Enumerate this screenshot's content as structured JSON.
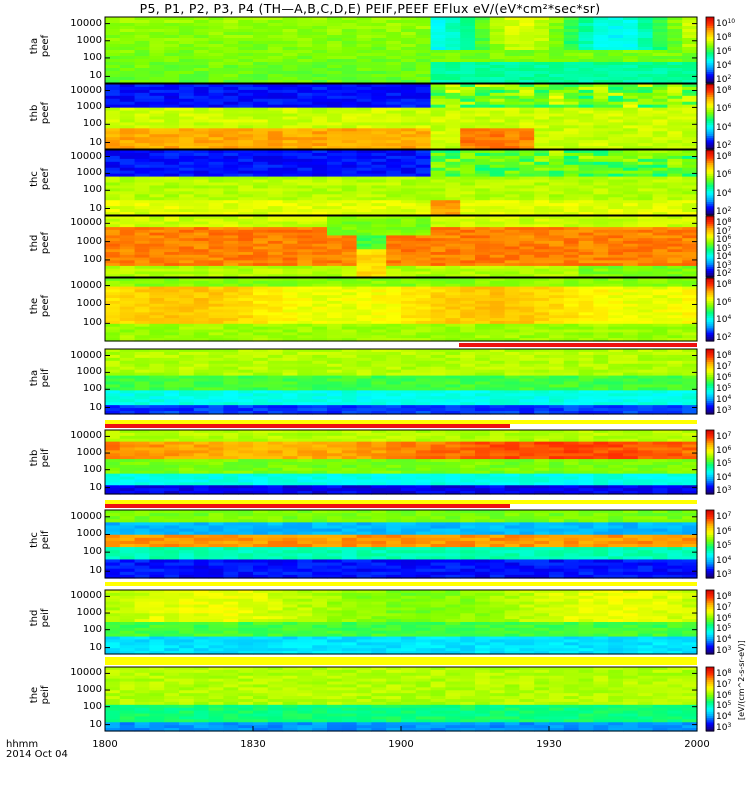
{
  "title": "P5, P1, P2, P3, P4 (TH—A,B,C,D,E) PEIF,PEEF EFlux eV/(eV*cm²*sec*sr)",
  "x_axis": {
    "label_line1": "hhmm",
    "label_line2": "2014 Oct 04",
    "ticks": [
      "1800",
      "1830",
      "1900",
      "1930",
      "2000"
    ]
  },
  "colorbar_label": "[eV/(cm^2-s-sr-eV)]",
  "chart_data": [
    {
      "type": "heatmap",
      "probe": "tha",
      "product": "peef",
      "ylabel_line1": "tha",
      "ylabel_line2": "peef",
      "y_ticks": [
        "10000",
        "1000",
        "100",
        "10"
      ],
      "colorbar_ticks": [
        "10",
        "8",
        "6",
        "4",
        "2"
      ],
      "colorbar_top_exp": "10",
      "x_range": [
        "1800",
        "2000"
      ]
    },
    {
      "type": "heatmap",
      "probe": "thb",
      "product": "peef",
      "ylabel_line1": "thb",
      "ylabel_line2": "peef",
      "y_ticks": [
        "10000",
        "1000",
        "100",
        "10"
      ],
      "colorbar_ticks": [
        "8",
        "6",
        "4",
        "2"
      ],
      "x_range": [
        "1800",
        "2000"
      ]
    },
    {
      "type": "heatmap",
      "probe": "thc",
      "product": "peef",
      "ylabel_line1": "thc",
      "ylabel_line2": "peef",
      "y_ticks": [
        "10000",
        "1000",
        "100",
        "10"
      ],
      "colorbar_ticks": [
        "8",
        "6",
        "4",
        "2"
      ],
      "x_range": [
        "1800",
        "2000"
      ]
    },
    {
      "type": "heatmap",
      "probe": "thd",
      "product": "peef",
      "ylabel_line1": "thd",
      "ylabel_line2": "peef",
      "y_ticks": [
        "10000",
        "1000",
        "100"
      ],
      "colorbar_ticks": [
        "8",
        "7",
        "6",
        "5",
        "4",
        "3",
        "2"
      ],
      "x_range": [
        "1800",
        "2000"
      ]
    },
    {
      "type": "heatmap",
      "probe": "the",
      "product": "peef",
      "ylabel_line1": "the",
      "ylabel_line2": "peef",
      "y_ticks": [
        "10000",
        "1000",
        "100"
      ],
      "colorbar_ticks": [
        "8",
        "6",
        "4",
        "2"
      ],
      "x_range": [
        "1800",
        "2000"
      ]
    },
    {
      "type": "heatmap",
      "probe": "tha",
      "product": "peif",
      "ylabel_line1": "tha",
      "ylabel_line2": "peif",
      "y_ticks": [
        "10000",
        "1000",
        "100",
        "10"
      ],
      "colorbar_ticks": [
        "8",
        "7",
        "6",
        "5",
        "4",
        "3"
      ],
      "x_range": [
        "1800",
        "2000"
      ]
    },
    {
      "type": "heatmap",
      "probe": "thb",
      "product": "peif",
      "ylabel_line1": "thb",
      "ylabel_line2": "peif",
      "y_ticks": [
        "10000",
        "1000",
        "100",
        "10"
      ],
      "colorbar_ticks": [
        "7",
        "6",
        "5",
        "4",
        "3"
      ],
      "x_range": [
        "1800",
        "2000"
      ]
    },
    {
      "type": "heatmap",
      "probe": "thc",
      "product": "peif",
      "ylabel_line1": "thc",
      "ylabel_line2": "peif",
      "y_ticks": [
        "10000",
        "1000",
        "100",
        "10"
      ],
      "colorbar_ticks": [
        "7",
        "6",
        "5",
        "4",
        "3"
      ],
      "x_range": [
        "1800",
        "2000"
      ]
    },
    {
      "type": "heatmap",
      "probe": "thd",
      "product": "peif",
      "ylabel_line1": "thd",
      "ylabel_line2": "peif",
      "y_ticks": [
        "10000",
        "1000",
        "100",
        "10"
      ],
      "colorbar_ticks": [
        "8",
        "7",
        "6",
        "5",
        "4",
        "3"
      ],
      "x_range": [
        "1800",
        "2000"
      ]
    },
    {
      "type": "heatmap",
      "probe": "the",
      "product": "peif",
      "ylabel_line1": "the",
      "ylabel_line2": "peif",
      "y_ticks": [
        "10000",
        "1000",
        "100",
        "10"
      ],
      "colorbar_ticks": [
        "8",
        "7",
        "6",
        "5",
        "4",
        "3"
      ],
      "x_range": [
        "1800",
        "2000"
      ]
    }
  ],
  "colors": {
    "background": "#ffffff",
    "flag_red": "#ee1111",
    "flag_yellow": "#ffff00",
    "colormap": [
      "#1a0066",
      "#0000ff",
      "#00a0ff",
      "#00ffff",
      "#00ff80",
      "#80ff00",
      "#ffff00",
      "#ffb000",
      "#ff3000",
      "#d00000"
    ]
  }
}
